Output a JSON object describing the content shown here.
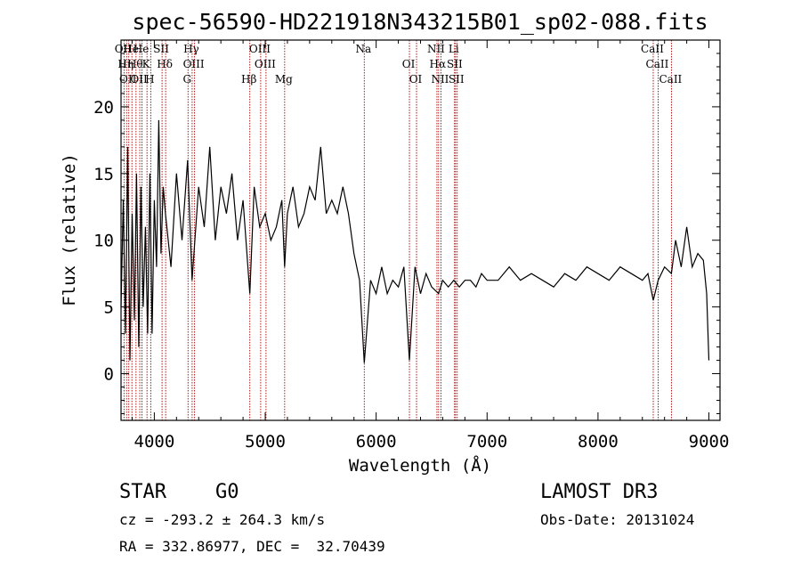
{
  "chart_data": {
    "type": "line",
    "title": "spec-56590-HD221918N343215B01_sp02-088.fits",
    "xlabel": "Wavelength (Å)",
    "ylabel": "Flux (relative)",
    "xlim": [
      3700,
      9100
    ],
    "ylim": [
      -3.5,
      25
    ],
    "xticks": [
      "4000",
      "5000",
      "6000",
      "7000",
      "8000",
      "9000"
    ],
    "yticks": [
      "0",
      "5",
      "10",
      "15",
      "20"
    ],
    "line_color": "#000000",
    "marker_color": "#aa0000",
    "series": [
      {
        "x": [
          3700,
          3720,
          3740,
          3760,
          3780,
          3800,
          3820,
          3840,
          3860,
          3880,
          3900,
          3920,
          3940,
          3960,
          3980,
          4000,
          4020,
          4040,
          4060,
          4080,
          4100,
          4150,
          4200,
          4250,
          4300,
          4340,
          4400,
          4450,
          4500,
          4550,
          4600,
          4650,
          4700,
          4750,
          4800,
          4861,
          4900,
          4950,
          5000,
          5050,
          5100,
          5150,
          5175,
          5200,
          5250,
          5300,
          5350,
          5400,
          5450,
          5500,
          5550,
          5600,
          5650,
          5700,
          5750,
          5800,
          5850,
          5893,
          5950,
          6000,
          6050,
          6100,
          6150,
          6200,
          6250,
          6300,
          6350,
          6400,
          6450,
          6500,
          6563,
          6600,
          6650,
          6700,
          6750,
          6800,
          6850,
          6900,
          6950,
          7000,
          7100,
          7200,
          7300,
          7400,
          7500,
          7600,
          7700,
          7800,
          7900,
          8000,
          8100,
          8200,
          8300,
          8400,
          8450,
          8498,
          8542,
          8600,
          8662,
          8700,
          8750,
          8800,
          8850,
          8900,
          8950,
          8980,
          9000
        ],
        "y": [
          5,
          13,
          3,
          17,
          1,
          12,
          4,
          15,
          2,
          14,
          5,
          11,
          3,
          15,
          3,
          13,
          8,
          19,
          9,
          14,
          12,
          8,
          15,
          10,
          16,
          7,
          14,
          11,
          17,
          10,
          14,
          12,
          15,
          10,
          13,
          6,
          14,
          11,
          12,
          10,
          11,
          13,
          8,
          12,
          14,
          11,
          12,
          14,
          13,
          17,
          12,
          13,
          12,
          14,
          12,
          9,
          7,
          0.8,
          7,
          6,
          8,
          6,
          7,
          6.5,
          8,
          1,
          8,
          6,
          7.5,
          6.5,
          6,
          7,
          6.5,
          7,
          6.5,
          7,
          7,
          6.5,
          7.5,
          7,
          7,
          8,
          7,
          7.5,
          7,
          6.5,
          7.5,
          7,
          8,
          7.5,
          7,
          8,
          7.5,
          7,
          7.5,
          5.5,
          7,
          8,
          7.5,
          10,
          8,
          11,
          8,
          9,
          8.5,
          6,
          1
        ]
      }
    ],
    "lines": [
      {
        "x": 3727,
        "label": "OII"
      },
      {
        "x": 3750,
        "label": "Hη"
      },
      {
        "x": 3770,
        "label": "OII"
      },
      {
        "x": 3798,
        "label": "He"
      },
      {
        "x": 3835,
        "label": "Hθ"
      },
      {
        "x": 3869,
        "label": "OII"
      },
      {
        "x": 3889,
        "label": "He"
      },
      {
        "x": 3934,
        "label": "K"
      },
      {
        "x": 3968,
        "label": "H"
      },
      {
        "x": 4070,
        "label": "SII"
      },
      {
        "x": 4102,
        "label": "Hδ"
      },
      {
        "x": 4304,
        "label": "G"
      },
      {
        "x": 4341,
        "label": "Hγ"
      },
      {
        "x": 4363,
        "label": "OIII"
      },
      {
        "x": 4861,
        "label": "Hβ"
      },
      {
        "x": 4959,
        "label": "OIII"
      },
      {
        "x": 5007,
        "label": "OIII"
      },
      {
        "x": 5175,
        "label": "Mg"
      },
      {
        "x": 5893,
        "label": "Na"
      },
      {
        "x": 6300,
        "label": "OI"
      },
      {
        "x": 6364,
        "label": "OI"
      },
      {
        "x": 6548,
        "label": "NII"
      },
      {
        "x": 6563,
        "label": "Hα"
      },
      {
        "x": 6584,
        "label": "NII"
      },
      {
        "x": 6707,
        "label": "Li"
      },
      {
        "x": 6716,
        "label": "SII"
      },
      {
        "x": 6731,
        "label": "SII"
      },
      {
        "x": 8498,
        "label": "CaII"
      },
      {
        "x": 8542,
        "label": "CaII"
      },
      {
        "x": 8662,
        "label": "CaII"
      }
    ]
  },
  "info": {
    "class": "STAR",
    "subclass": "G0",
    "survey": "LAMOST DR3",
    "cz": "cz = -293.2 ± 264.3 km/s",
    "obs_date": "Obs-Date: 20131024",
    "radec": "RA = 332.86977, DEC =  32.70439"
  }
}
